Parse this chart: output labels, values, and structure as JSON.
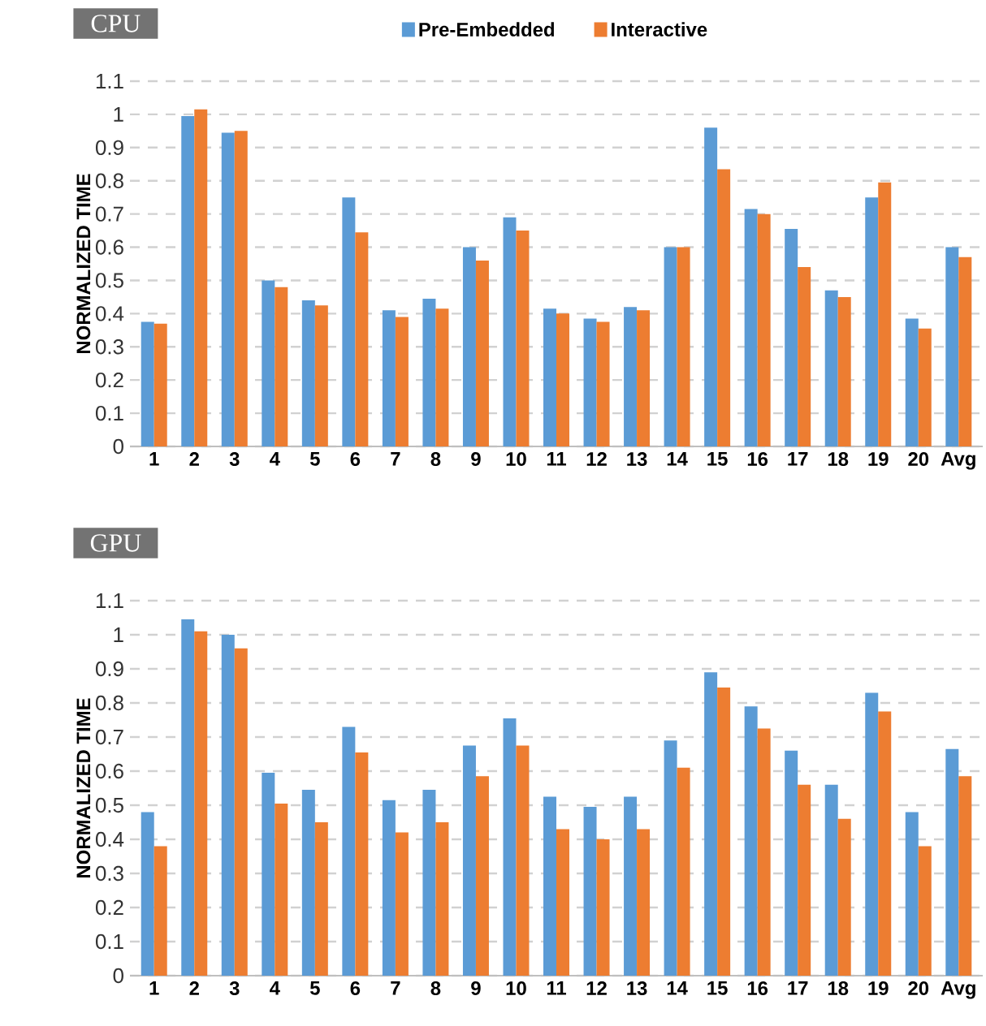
{
  "chart_data": [
    {
      "type": "bar",
      "title": "CPU",
      "ylabel": "NORMALIZED TIME",
      "categories": [
        "1",
        "2",
        "3",
        "4",
        "5",
        "6",
        "7",
        "8",
        "9",
        "10",
        "11",
        "12",
        "13",
        "14",
        "15",
        "16",
        "17",
        "18",
        "19",
        "20",
        "Avg"
      ],
      "series": [
        {
          "name": "Pre-Embedded",
          "color": "#5b9bd5",
          "values": [
            0.375,
            0.995,
            0.945,
            0.5,
            0.44,
            0.75,
            0.41,
            0.445,
            0.6,
            0.69,
            0.415,
            0.385,
            0.42,
            0.6,
            0.96,
            0.715,
            0.655,
            0.47,
            0.75,
            0.385,
            0.6
          ]
        },
        {
          "name": "Interactive",
          "color": "#ed7d31",
          "values": [
            0.37,
            1.015,
            0.95,
            0.48,
            0.425,
            0.645,
            0.39,
            0.415,
            0.56,
            0.65,
            0.4,
            0.375,
            0.41,
            0.6,
            0.835,
            0.7,
            0.54,
            0.45,
            0.795,
            0.355,
            0.57
          ]
        }
      ],
      "ylim": [
        0,
        1.1
      ],
      "yticks": [
        0,
        0.1,
        0.2,
        0.3,
        0.4,
        0.5,
        0.6,
        0.7,
        0.8,
        0.9,
        1,
        1.1
      ],
      "grid": "y",
      "legend": "top"
    },
    {
      "type": "bar",
      "title": "GPU",
      "ylabel": "NORMALIZED TIME",
      "categories": [
        "1",
        "2",
        "3",
        "4",
        "5",
        "6",
        "7",
        "8",
        "9",
        "10",
        "11",
        "12",
        "13",
        "14",
        "15",
        "16",
        "17",
        "18",
        "19",
        "20",
        "Avg"
      ],
      "series": [
        {
          "color": "#5b9bd5",
          "values": [
            0.48,
            1.045,
            1.0,
            0.595,
            0.545,
            0.73,
            0.515,
            0.545,
            0.675,
            0.755,
            0.525,
            0.495,
            0.525,
            0.69,
            0.89,
            0.79,
            0.66,
            0.56,
            0.83,
            0.48,
            0.665
          ]
        },
        {
          "color": "#ed7d31",
          "values": [
            0.38,
            1.01,
            0.96,
            0.505,
            0.45,
            0.655,
            0.42,
            0.45,
            0.585,
            0.675,
            0.43,
            0.4,
            0.43,
            0.61,
            0.845,
            0.725,
            0.56,
            0.46,
            0.775,
            0.38,
            0.585
          ]
        }
      ],
      "ylim": [
        0,
        1.1
      ],
      "yticks": [
        0,
        0.1,
        0.2,
        0.3,
        0.4,
        0.5,
        0.6,
        0.7,
        0.8,
        0.9,
        1,
        1.1
      ],
      "grid": "y"
    }
  ]
}
